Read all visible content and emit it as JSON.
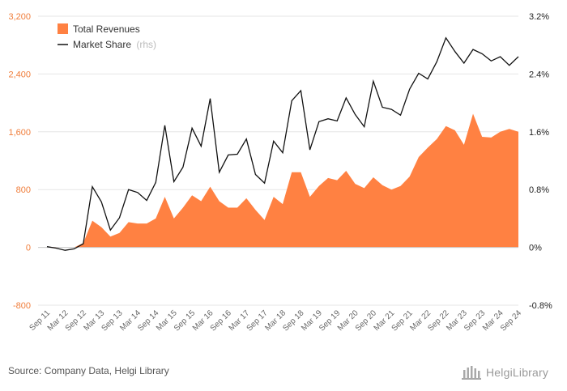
{
  "source_text": "Source: Company Data, Helgi Library",
  "logo": {
    "text": "HelgiLibrary",
    "icon": "library-building-icon"
  },
  "colors": {
    "revenues": "#ff8142",
    "market_share": "#111111",
    "left_axis": "#f07d3a",
    "grid": "#e6e6e6"
  },
  "chart_data": {
    "type": "area",
    "grid": true,
    "legend_position": "top-left",
    "x_labels": [
      "Sep 11",
      "Mar 12",
      "Sep 12",
      "Mar 13",
      "Sep 13",
      "Mar 14",
      "Sep 14",
      "Mar 15",
      "Sep 15",
      "Mar 16",
      "Sep 16",
      "Mar 17",
      "Sep 17",
      "Mar 18",
      "Sep 18",
      "Mar 19",
      "Sep 19",
      "Mar 20",
      "Sep 20",
      "Mar 21",
      "Sep 21",
      "Mar 22",
      "Sep 22",
      "Mar 23",
      "Sep 23",
      "Mar 24",
      "Sep 24"
    ],
    "y_left": {
      "min": -800,
      "max": 3200,
      "ticks": [
        -800,
        0,
        800,
        1600,
        2400,
        3200
      ],
      "tick_labels": [
        "-800",
        "0",
        "800",
        "1,600",
        "2,400",
        "3,200"
      ]
    },
    "y_right": {
      "min": -0.8,
      "max": 3.2,
      "ticks": [
        -0.8,
        0,
        0.8,
        1.6,
        2.4,
        3.2
      ],
      "tick_labels": [
        "-0.8%",
        "0%",
        "0.8%",
        "1.6%",
        "2.4%",
        "3.2%"
      ]
    },
    "series": [
      {
        "name": "Total Revenues",
        "type": "area",
        "axis": "left",
        "values": [
          10,
          5,
          -5,
          0,
          60,
          370,
          280,
          150,
          200,
          350,
          330,
          330,
          400,
          700,
          400,
          550,
          720,
          640,
          840,
          640,
          550,
          550,
          680,
          520,
          380,
          700,
          600,
          1040,
          1040,
          700,
          850,
          960,
          930,
          1060,
          880,
          820,
          970,
          860,
          800,
          850,
          980,
          1250,
          1380,
          1500,
          1680,
          1620,
          1420,
          1850,
          1530,
          1520,
          1600,
          1640,
          1600
        ]
      },
      {
        "name": "Market Share",
        "name_suffix": "(rhs)",
        "type": "line",
        "axis": "right",
        "values": [
          0.01,
          -0.01,
          -0.04,
          -0.02,
          0.05,
          0.84,
          0.63,
          0.24,
          0.41,
          0.8,
          0.76,
          0.65,
          0.9,
          1.69,
          0.91,
          1.11,
          1.65,
          1.4,
          2.06,
          1.04,
          1.28,
          1.29,
          1.5,
          1.01,
          0.89,
          1.47,
          1.31,
          2.03,
          2.17,
          1.35,
          1.74,
          1.78,
          1.75,
          2.07,
          1.84,
          1.67,
          2.3,
          1.94,
          1.91,
          1.83,
          2.19,
          2.41,
          2.33,
          2.57,
          2.9,
          2.71,
          2.55,
          2.74,
          2.68,
          2.58,
          2.64,
          2.52,
          2.64
        ]
      }
    ]
  }
}
